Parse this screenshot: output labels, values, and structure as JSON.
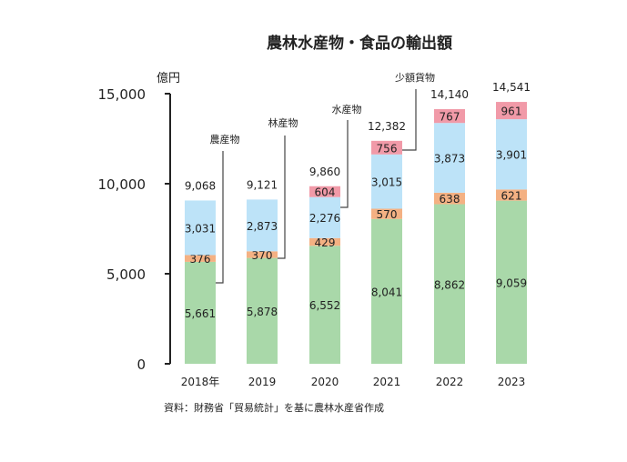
{
  "chart_data": {
    "type": "bar",
    "stacked": true,
    "title": "農林水産物・食品の輸出額",
    "ylabel": "億円",
    "ylim": [
      0,
      15000
    ],
    "yticks": [
      "0",
      "5,000",
      "10,000",
      "15,000"
    ],
    "categories": [
      "2018年",
      "2019",
      "2020",
      "2021",
      "2022",
      "2023"
    ],
    "series": [
      {
        "name": "農産物",
        "color": "#a9d8a9",
        "values": [
          5661,
          5878,
          6552,
          8041,
          8862,
          9059
        ],
        "labels": [
          "5,661",
          "5,878",
          "6,552",
          "8,041",
          "8,862",
          "9,059"
        ]
      },
      {
        "name": "林産物",
        "color": "#f4b183",
        "values": [
          376,
          370,
          429,
          570,
          638,
          621
        ],
        "labels": [
          "376",
          "370",
          "429",
          "570",
          "638",
          "621"
        ]
      },
      {
        "name": "水産物",
        "color": "#bde3f8",
        "values": [
          3031,
          2873,
          2276,
          3015,
          3873,
          3901
        ],
        "labels": [
          "3,031",
          "2,873",
          "2,276",
          "3,015",
          "3,873",
          "3,901"
        ]
      },
      {
        "name": "少額貨物",
        "color": "#f19aa8",
        "values": [
          0,
          0,
          604,
          756,
          767,
          961
        ],
        "labels": [
          "",
          "",
          "604",
          "756",
          "767",
          "961"
        ]
      }
    ],
    "totals": [
      "9,068",
      "9,121",
      "9,860",
      "12,382",
      "14,140",
      "14,541"
    ],
    "source": "資料：財務省「貿易統計」を基に農林水産省作成",
    "grid": false,
    "legend": "callouts"
  }
}
